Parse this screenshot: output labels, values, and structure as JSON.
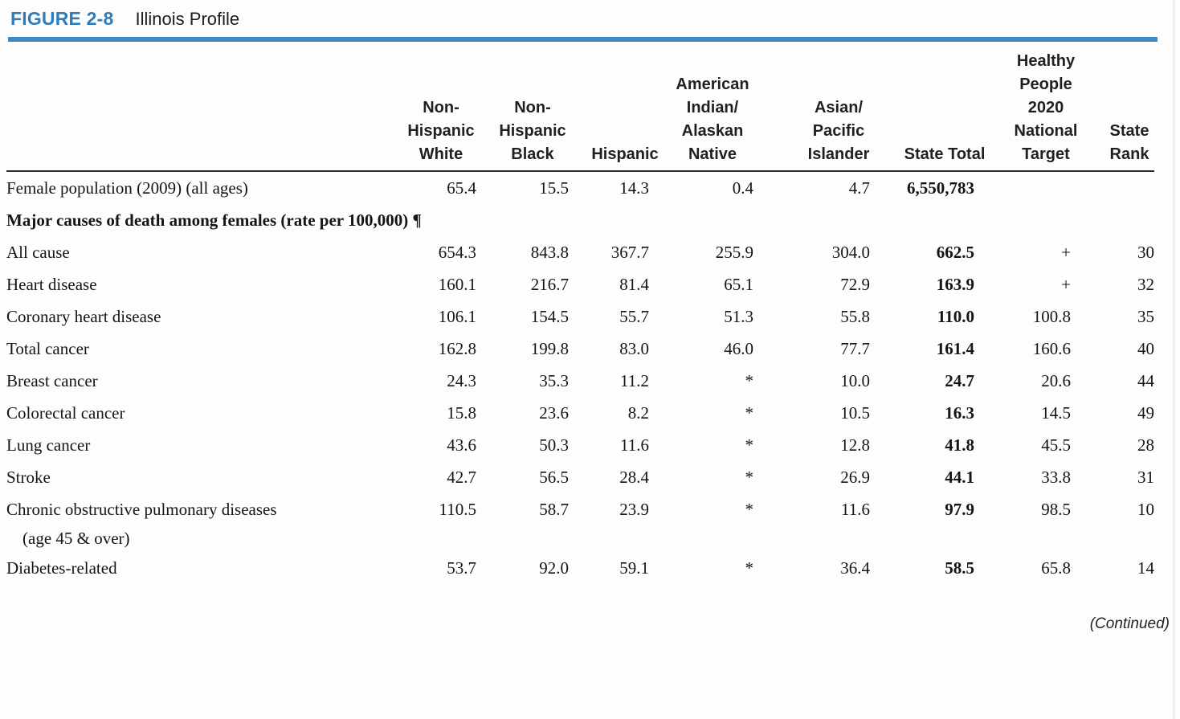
{
  "figure": {
    "label": "FIGURE 2-8",
    "title": "Illinois Profile"
  },
  "colors": {
    "accent_blue": "#4288bf",
    "figure_label_blue": "#2e7cb8",
    "rule_black": "#2b2b2b"
  },
  "table": {
    "column_headers": [
      {
        "id": "non-hispanic-white",
        "lines": [
          "Non-",
          "Hispanic",
          "White"
        ]
      },
      {
        "id": "non-hispanic-black",
        "lines": [
          "Non-",
          "Hispanic",
          "Black"
        ]
      },
      {
        "id": "hispanic",
        "lines": [
          "Hispanic"
        ]
      },
      {
        "id": "american-indian-alaskan-native",
        "lines": [
          "American",
          "Indian/",
          "Alaskan",
          "Native"
        ]
      },
      {
        "id": "asian-pacific-islander",
        "lines": [
          "Asian/",
          "Pacific",
          "Islander"
        ]
      },
      {
        "id": "state-total",
        "lines": [
          "State Total"
        ]
      },
      {
        "id": "healthy-people-2020-national-target",
        "lines": [
          "Healthy",
          "People",
          "2020",
          "National",
          "Target"
        ]
      },
      {
        "id": "state-rank",
        "lines": [
          "State",
          "Rank"
        ]
      }
    ],
    "rows": [
      {
        "type": "data",
        "label": "Female population (2009) (all ages)",
        "indent": false,
        "values": [
          "65.4",
          "15.5",
          "14.3",
          "0.4",
          "4.7",
          "6,550,783",
          "",
          ""
        ]
      },
      {
        "type": "section",
        "label": "Major causes of death among females (rate per 100,000) ¶"
      },
      {
        "type": "data",
        "label": "All cause",
        "indent": false,
        "values": [
          "654.3",
          "843.8",
          "367.7",
          "255.9",
          "304.0",
          "662.5",
          "+",
          "30"
        ]
      },
      {
        "type": "data",
        "label": "Heart disease",
        "indent": false,
        "values": [
          "160.1",
          "216.7",
          "81.4",
          "65.1",
          "72.9",
          "163.9",
          "+",
          "32"
        ]
      },
      {
        "type": "data",
        "label": "Coronary heart disease",
        "indent": true,
        "values": [
          "106.1",
          "154.5",
          "55.7",
          "51.3",
          "55.8",
          "110.0",
          "100.8",
          "35"
        ]
      },
      {
        "type": "data",
        "label": "Total cancer",
        "indent": false,
        "values": [
          "162.8",
          "199.8",
          "83.0",
          "46.0",
          "77.7",
          "161.4",
          "160.6",
          "40"
        ]
      },
      {
        "type": "data",
        "label": "Breast cancer",
        "indent": true,
        "values": [
          "24.3",
          "35.3",
          "11.2",
          "*",
          "10.0",
          "24.7",
          "20.6",
          "44"
        ]
      },
      {
        "type": "data",
        "label": "Colorectal cancer",
        "indent": true,
        "values": [
          "15.8",
          "23.6",
          "8.2",
          "*",
          "10.5",
          "16.3",
          "14.5",
          "49"
        ]
      },
      {
        "type": "data",
        "label": "Lung cancer",
        "indent": true,
        "values": [
          "43.6",
          "50.3",
          "11.6",
          "*",
          "12.8",
          "41.8",
          "45.5",
          "28"
        ]
      },
      {
        "type": "data",
        "label": "Stroke",
        "indent": false,
        "values": [
          "42.7",
          "56.5",
          "28.4",
          "*",
          "26.9",
          "44.1",
          "33.8",
          "31"
        ]
      },
      {
        "type": "data",
        "label": "Chronic obstructive pulmonary diseases",
        "label_line2": "(age 45 & over)",
        "indent": false,
        "values": [
          "110.5",
          "58.7",
          "23.9",
          "*",
          "11.6",
          "97.9",
          "98.5",
          "10"
        ]
      },
      {
        "type": "data",
        "label": "Diabetes-related",
        "indent": false,
        "values": [
          "53.7",
          "92.0",
          "59.1",
          "*",
          "36.4",
          "58.5",
          "65.8",
          "14"
        ]
      }
    ]
  },
  "footer": {
    "continued": "(Continued)"
  }
}
